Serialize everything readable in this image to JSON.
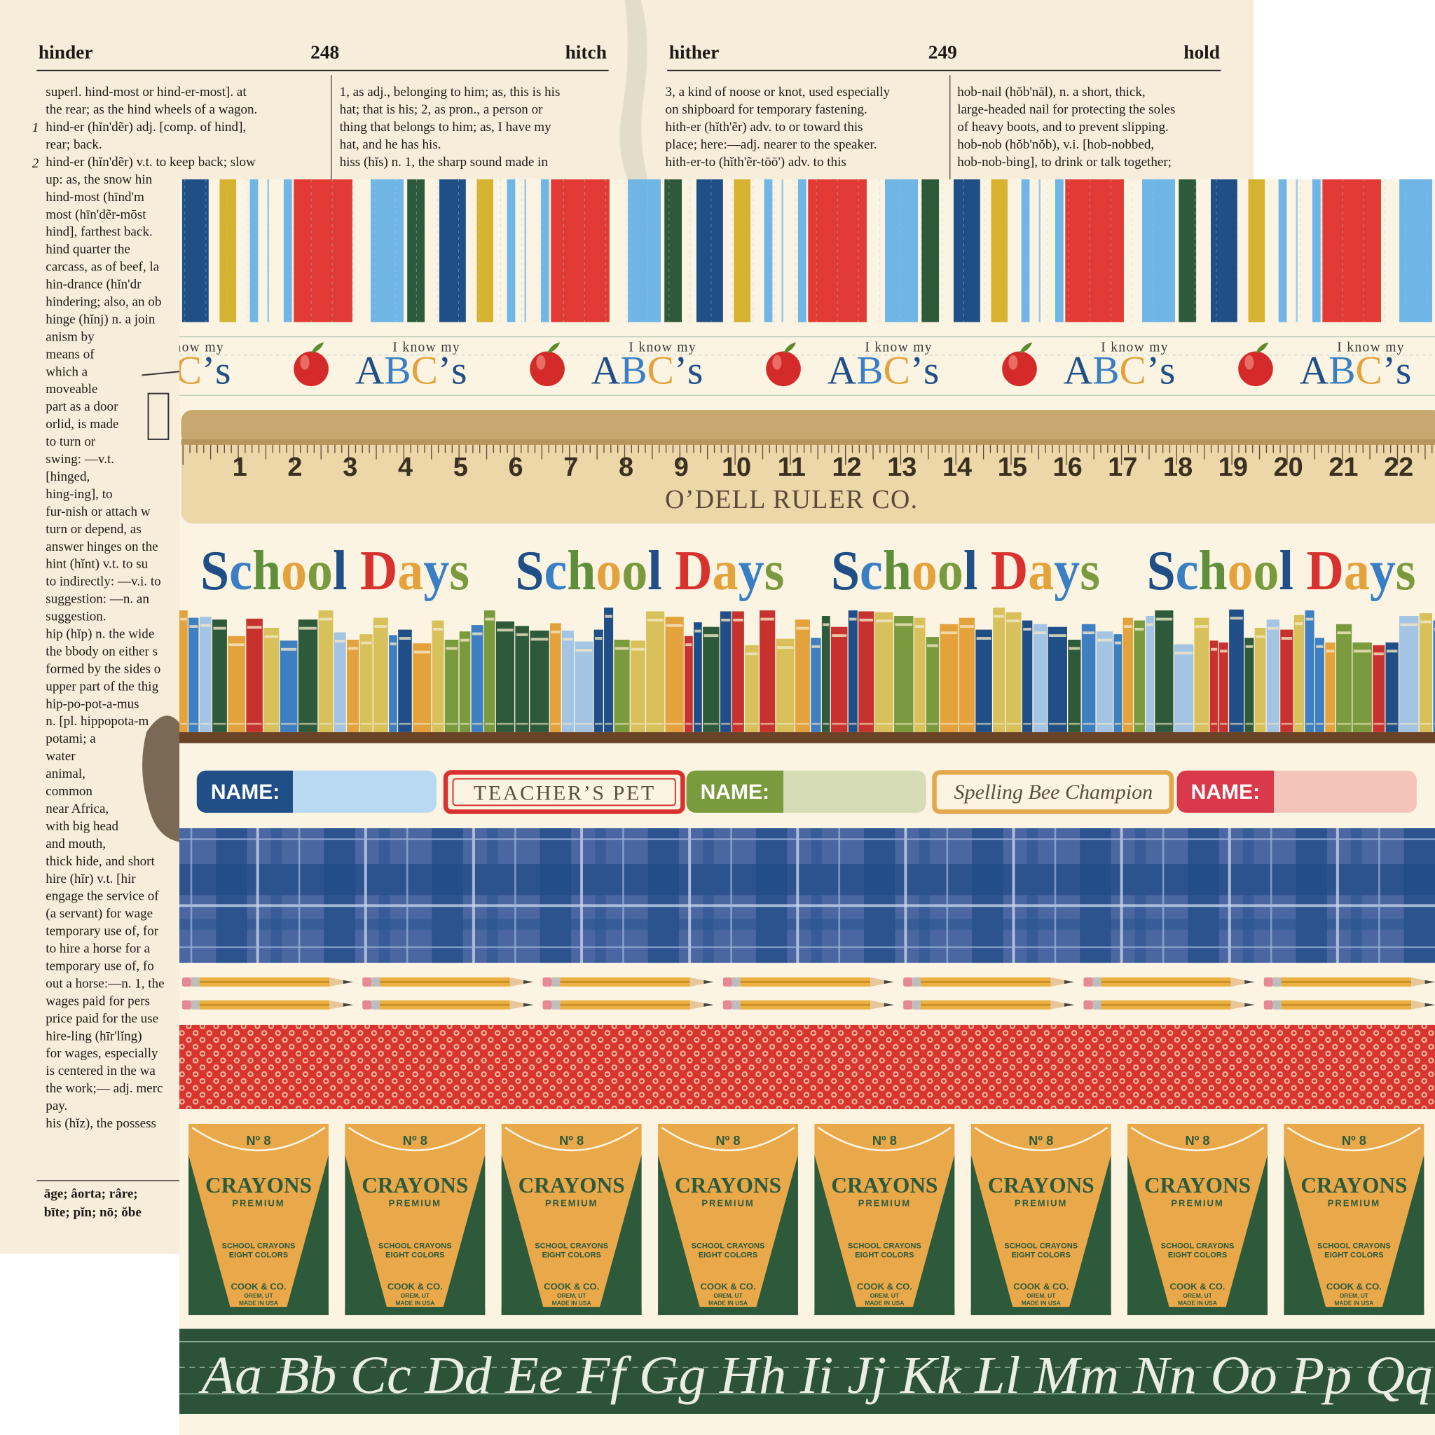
{
  "dictionary": {
    "header": {
      "left_guide": "hinder",
      "left_page": "248",
      "left_guide_end": "hitch",
      "right_guide": "hither",
      "right_page": "249",
      "right_guide_end": "hold"
    },
    "sense_numbers": [
      "1",
      "2"
    ],
    "columns": [
      [
        "superl. hind-most or hind-er-most]. at",
        "the rear; as the hind wheels of a wagon.",
        "hind-er (hĭn'dẽr) adj. [comp. of hind],",
        "rear; back.",
        "hind-er (hĭn'dẽr) v.t. to keep back; slow",
        "up: as, the snow hin",
        "hind-most (hīnd'm",
        "most (hīn'dẽr-mōst",
        "hind], farthest back.",
        "hind quarter the",
        "carcass, as of beef, la",
        "hin-drance (hĭn'dr",
        "hindering; also, an ob",
        "hinge (hĭnj) n. a join",
        "anism by",
        "means of",
        "which a",
        "moveable",
        "part as a door",
        "orlid, is made",
        "to turn or",
        "swing: —v.t.",
        "[hinged,",
        "hing-ing], to",
        "fur-nish or attach w",
        "turn or depend, as",
        "answer hinges on the",
        "hint (hĭnt) v.t. to su",
        "to indirectly: —v.i. to",
        "suggestion: —n. an",
        "suggestion.",
        "hip (hĭp) n. the wide",
        "the bbody on either s",
        "formed by the sides o",
        "upper part of the thig",
        "hip-po-pot-a-mus",
        "n. [pl. hippopota-m",
        "potami; a",
        "water",
        "animal,",
        "common",
        "near Africa,",
        "with big head",
        "and mouth,",
        "thick hide, and short",
        "hire (hĭr) v.t. [hir",
        "engage the service of",
        "(a servant) for wage",
        "temporary use of, for",
        "to hire a horse for a",
        "temporary use of, fo",
        "out a horse:—n. 1, the",
        "wages paid for pers",
        "price paid for the use",
        "hire-ling (hīr'lĭng)",
        "for wages, especially",
        "is centered in the wa",
        "the work;— adj. merc",
        "pay.",
        "his (hĭz), the possess"
      ],
      [
        "1, as adj., belonging to him; as, this is his",
        "hat; that is his; 2, as pron., a person or",
        "thing that belongs to him; as, I have my",
        "hat, and he has his.",
        "hiss (hĭs) n. 1, the sharp sound made in"
      ],
      [
        "3, a kind of noose or knot, used especially",
        "on shipboard for temporary fastening.",
        "hith-er (hĭth'ẽr) adv. to or toward this",
        "place; here:—adj. nearer to the speaker.",
        "hith-er-to (hĭth'ẽr-tōō') adv. to this"
      ],
      [
        "hob-nail (hŏb'nāl), n. a short, thick,",
        "large-headed nail for protecting the soles",
        "of heavy boots, and to prevent slipping.",
        "hob-nob (hŏb'nŏb), v.i. [hob-nobbed,",
        "hob-nob-bing], to drink or talk together;"
      ]
    ],
    "pronunciation_key": [
      "āge; âorta; râre;",
      "bīte; pĭn; nō; ŏbe"
    ]
  },
  "abc_strip": {
    "small": "I know my",
    "big": "ABC’s"
  },
  "ruler": {
    "numbers": [
      1,
      2,
      3,
      4,
      5,
      6,
      7,
      8,
      9,
      10,
      11,
      12,
      13,
      14,
      15,
      16,
      17,
      18,
      19,
      20,
      21,
      22
    ],
    "maker": "O’DELL RULER CO."
  },
  "banner": "School Days",
  "labels": {
    "name": "NAME:",
    "teachers_pet": "TEACHER’S PET",
    "spelling_bee": "Spelling Bee Champion"
  },
  "crayon_box": {
    "number": "Nº 8",
    "brand": "CRAYONS",
    "grade": "PREMIUM",
    "line1": "SCHOOL CRAYONS",
    "line2": "EIGHT COLORS",
    "maker": "COOK & CO.",
    "city": "OREM, UT",
    "origin": "MADE IN USA"
  },
  "cursive": "Aa Bb Cc Dd Ee Ff Gg Hh Ii Jj Kk Ll Mm Nn Oo Pp Qq"
}
